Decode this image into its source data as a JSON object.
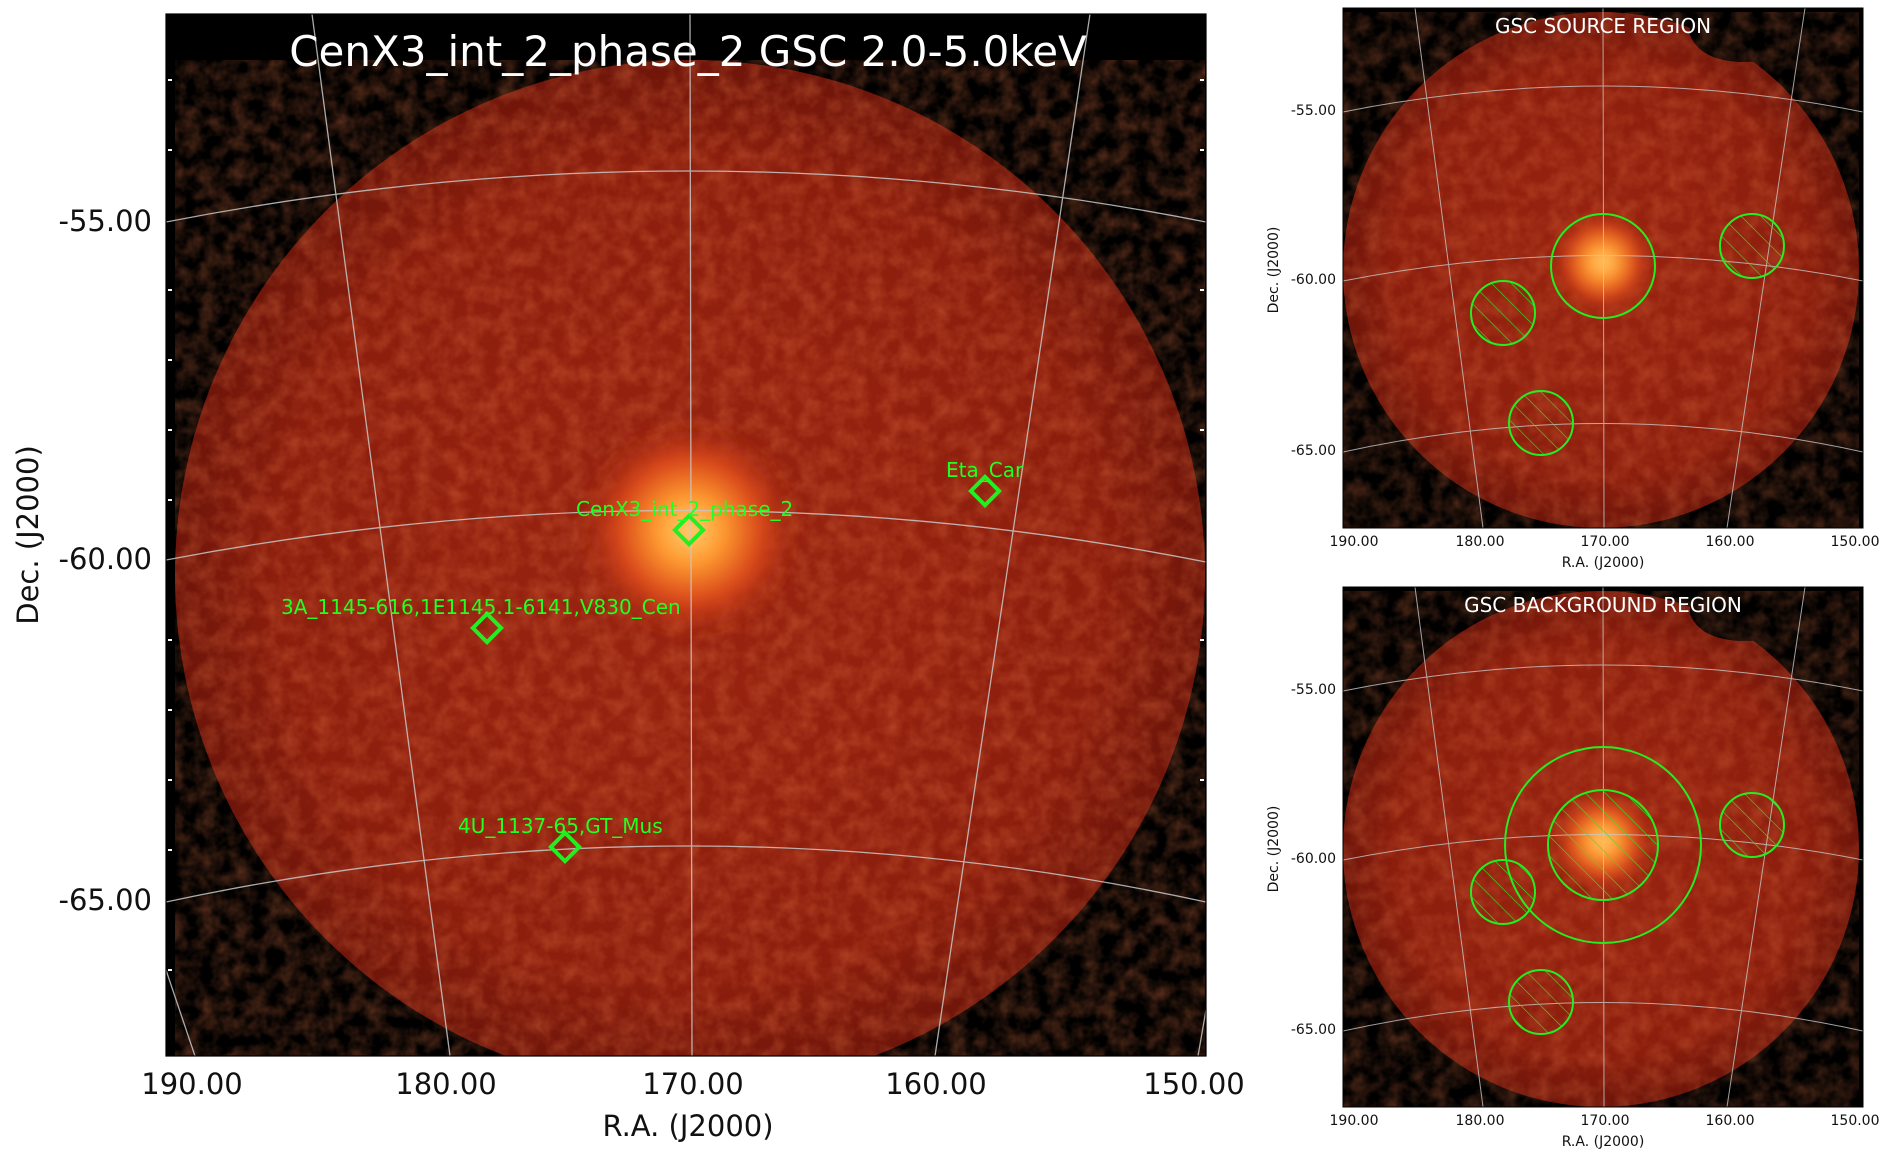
{
  "main": {
    "title": "CenX3_int_2_phase_2 GSC 2.0-5.0keV",
    "xlabel": "R.A. (J2000)",
    "ylabel": "Dec. (J2000)",
    "x_ticks": [
      "190.00",
      "180.00",
      "170.00",
      "160.00",
      "150.00"
    ],
    "y_ticks": [
      "-55.00",
      "-60.00",
      "-65.00"
    ],
    "sources": [
      {
        "label": "CenX3_int_2_phase_2",
        "ra": 170.3,
        "dec": -60.6
      },
      {
        "label": "Eta_Car",
        "ra": 161.3,
        "dec": -59.7
      },
      {
        "label": "3A_1145-616,1E1145.1-6141,V830_Cen",
        "ra": 176.9,
        "dec": -61.95
      },
      {
        "label": "4U_1137-65,GT_Mus",
        "ra": 174.9,
        "dec": -65.4
      }
    ]
  },
  "panels": [
    {
      "title": "GSC SOURCE REGION",
      "xlabel": "R.A. (J2000)",
      "ylabel": "Dec. (J2000)",
      "x_ticks": [
        "190.00",
        "180.00",
        "170.00",
        "160.00",
        "150.00"
      ],
      "y_ticks": [
        "-55.00",
        "-60.00",
        "-65.00"
      ]
    },
    {
      "title": "GSC BACKGROUND REGION",
      "xlabel": "R.A. (J2000)",
      "ylabel": "Dec. (J2000)",
      "x_ticks": [
        "190.00",
        "180.00",
        "170.00",
        "160.00",
        "150.00"
      ],
      "y_ticks": [
        "-55.00",
        "-60.00",
        "-65.00"
      ]
    }
  ],
  "colors": {
    "background": "#000000",
    "field": "#8a1c0c",
    "field_light": "#a2280f",
    "source_core": "#ffb040",
    "source_halo": "#e04a10",
    "marker": "#22ee22",
    "grid": "#c8c8c8"
  }
}
